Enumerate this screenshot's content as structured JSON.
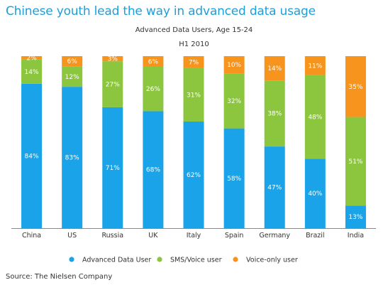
{
  "title": "Chinese youth lead the way in advanced data usage",
  "source": "Source: The Nielsen Company",
  "chart_data": {
    "type": "bar",
    "stacked": true,
    "percent_stacked": true,
    "subtitle": "Advanced Data Users, Age 15-24",
    "period": "H1 2010",
    "categories": [
      "China",
      "US",
      "Russia",
      "UK",
      "Italy",
      "Spain",
      "Germany",
      "Brazil",
      "India"
    ],
    "series": [
      {
        "name": "Advanced Data User",
        "color": "#1aa3e8",
        "values": [
          84,
          83,
          71,
          68,
          62,
          58,
          47,
          40,
          13
        ]
      },
      {
        "name": "SMS/Voice user",
        "color": "#8cc63f",
        "values": [
          14,
          12,
          27,
          26,
          31,
          32,
          38,
          48,
          51
        ]
      },
      {
        "name": "Voice-only user",
        "color": "#f7941d",
        "values": [
          2,
          6,
          3,
          6,
          7,
          10,
          14,
          11,
          35
        ]
      }
    ],
    "data_labels": [
      [
        "84%",
        "83%",
        "71%",
        "68%",
        "62%",
        "58%",
        "47%",
        "40%",
        "13%"
      ],
      [
        "14%",
        "12%",
        "27%",
        "26%",
        "31%",
        "32%",
        "38%",
        "48%",
        "51%"
      ],
      [
        "2%",
        "6%",
        "3%",
        "6%",
        "7%",
        "10%",
        "14%",
        "11%",
        "35%"
      ]
    ],
    "ylim": [
      0,
      100
    ],
    "grid": false,
    "legend_position": "bottom"
  }
}
